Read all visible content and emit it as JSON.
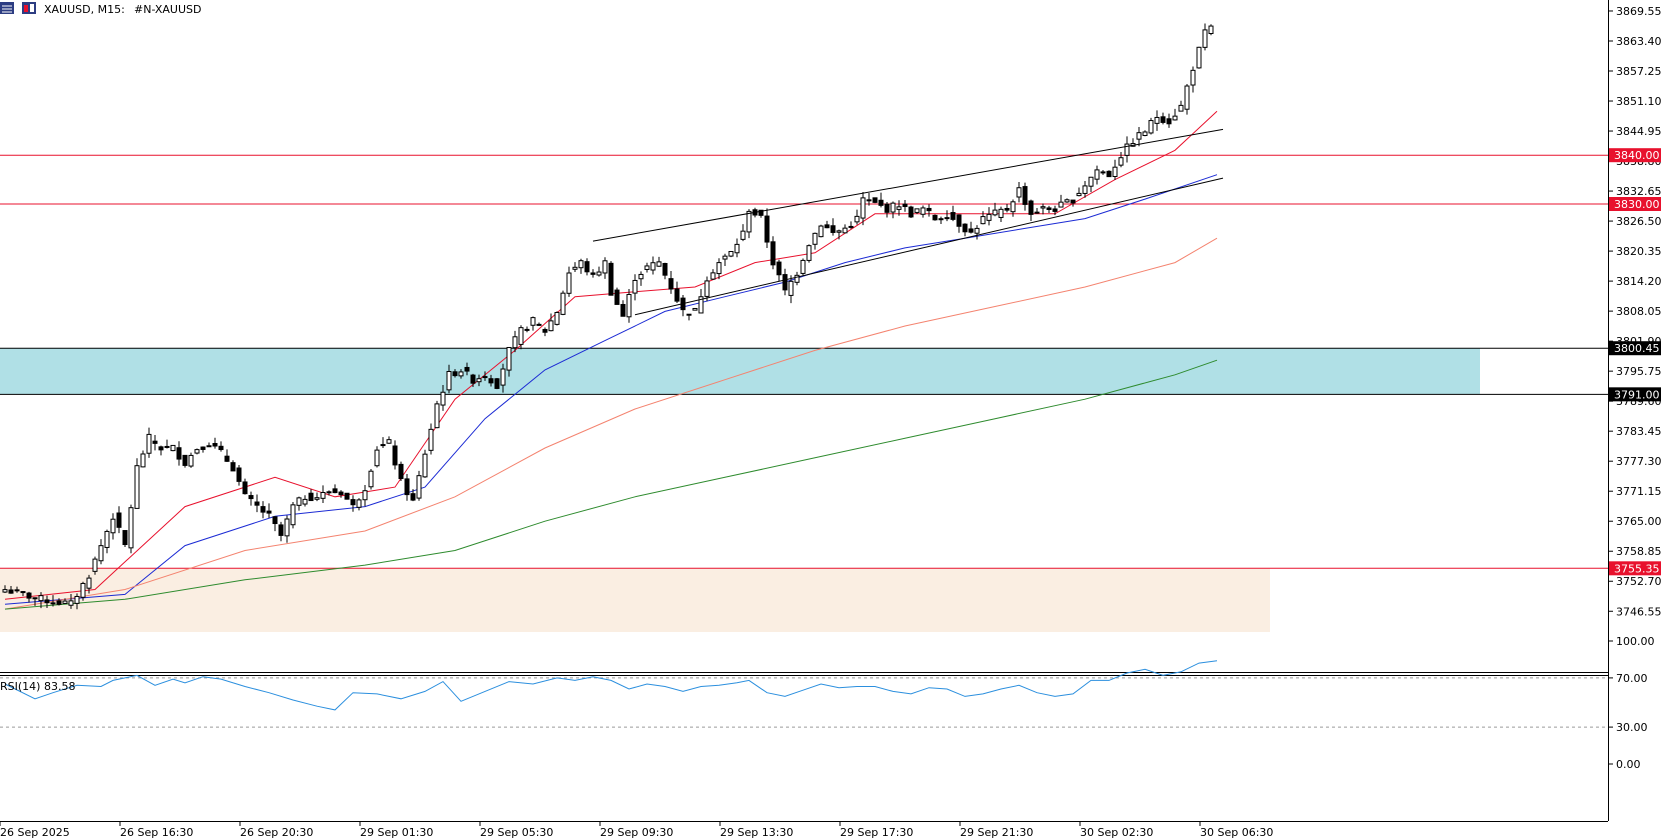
{
  "header": {
    "symbol_title": "XAUUSD, M15:",
    "symbol_desc": "#N-XAUUSD"
  },
  "indicator_label": "RSI(14) 83.58",
  "price_tags": [
    "3840.00",
    "3830.00",
    "3800.45",
    "3791.00",
    "3755.35"
  ],
  "colors": {
    "background": "#ffffff",
    "bull_candle": "#ffffff",
    "bear_candle": "#000000",
    "red_level": "#e8112d",
    "zone_cyan": "#b0e0e6",
    "zone_beige": "#faeee2",
    "ema_fast": "#e8112d",
    "ema_mid": "#1c2bd4",
    "ema_slow": "#f4836f",
    "ema_long": "#2e8b2e",
    "rsi_line": "#2b8fde"
  },
  "chart_data": [
    {
      "type": "candlestick",
      "title": "XAUUSD, M15: #N-XAUUSD",
      "ylim": [
        3742.3,
        3871.8
      ],
      "y_tick_labels": [
        "3863.40",
        "3857.25",
        "3851.10",
        "3844.95",
        "3838.80",
        "3832.65",
        "3826.50",
        "3820.35",
        "3814.20",
        "3808.05",
        "3801.90",
        "3795.75",
        "3789.60",
        "3783.45",
        "3777.30",
        "3771.15",
        "3765.00",
        "3758.85",
        "3752.70",
        "3746.55",
        "3869.55"
      ],
      "x_tick_labels": [
        "26 Sep 2025",
        "26 Sep 16:30",
        "26 Sep 20:30",
        "29 Sep 01:30",
        "29 Sep 05:30",
        "29 Sep 09:30",
        "29 Sep 13:30",
        "29 Sep 17:30",
        "29 Sep 21:30",
        "30 Sep 02:30",
        "30 Sep 06:30"
      ],
      "close_path": [
        [
          0,
          3751
        ],
        [
          6,
          3749
        ],
        [
          11,
          3748
        ],
        [
          14,
          3754
        ],
        [
          18,
          3766
        ],
        [
          20,
          3760
        ],
        [
          22,
          3776
        ],
        [
          24,
          3782
        ],
        [
          26,
          3780
        ],
        [
          28,
          3780
        ],
        [
          30,
          3777
        ],
        [
          32,
          3780
        ],
        [
          34,
          3781
        ],
        [
          36,
          3779
        ],
        [
          38,
          3776
        ],
        [
          40,
          3770
        ],
        [
          42,
          3768
        ],
        [
          44,
          3766
        ],
        [
          46,
          3762
        ],
        [
          48,
          3768
        ],
        [
          50,
          3770
        ],
        [
          52,
          3770
        ],
        [
          54,
          3771
        ],
        [
          56,
          3771
        ],
        [
          58,
          3768
        ],
        [
          60,
          3772
        ],
        [
          62,
          3780
        ],
        [
          64,
          3781
        ],
        [
          66,
          3773
        ],
        [
          68,
          3769
        ],
        [
          70,
          3779
        ],
        [
          72,
          3789
        ],
        [
          74,
          3795
        ],
        [
          76,
          3796
        ],
        [
          78,
          3794
        ],
        [
          80,
          3795
        ],
        [
          82,
          3793
        ],
        [
          84,
          3800
        ],
        [
          86,
          3804
        ],
        [
          88,
          3806
        ],
        [
          90,
          3804
        ],
        [
          92,
          3808
        ],
        [
          94,
          3816
        ],
        [
          96,
          3818
        ],
        [
          98,
          3815
        ],
        [
          100,
          3818
        ],
        [
          101,
          3812
        ],
        [
          103,
          3807
        ],
        [
          105,
          3815
        ],
        [
          107,
          3817
        ],
        [
          109,
          3818
        ],
        [
          111,
          3813
        ],
        [
          113,
          3808
        ],
        [
          115,
          3808
        ],
        [
          117,
          3815
        ],
        [
          119,
          3818
        ],
        [
          121,
          3820
        ],
        [
          123,
          3824
        ],
        [
          124,
          3829
        ],
        [
          126,
          3827
        ],
        [
          128,
          3818
        ],
        [
          130,
          3812
        ],
        [
          132,
          3816
        ],
        [
          134,
          3822
        ],
        [
          136,
          3826
        ],
        [
          138,
          3824
        ],
        [
          140,
          3825
        ],
        [
          142,
          3827
        ],
        [
          143,
          3831
        ],
        [
          145,
          3830
        ],
        [
          147,
          3829
        ],
        [
          149,
          3830
        ],
        [
          151,
          3828
        ],
        [
          153,
          3829
        ],
        [
          155,
          3827
        ],
        [
          157,
          3828
        ],
        [
          159,
          3826
        ],
        [
          161,
          3824
        ],
        [
          163,
          3827
        ],
        [
          165,
          3828
        ],
        [
          167,
          3829
        ],
        [
          169,
          3833
        ],
        [
          171,
          3828
        ],
        [
          173,
          3829
        ],
        [
          175,
          3829
        ],
        [
          178,
          3831
        ],
        [
          180,
          3834
        ],
        [
          182,
          3837
        ],
        [
          184,
          3836
        ],
        [
          186,
          3840
        ],
        [
          188,
          3843
        ],
        [
          190,
          3845
        ],
        [
          192,
          3848
        ],
        [
          194,
          3847
        ],
        [
          196,
          3850
        ],
        [
          198,
          3858
        ],
        [
          200,
          3865
        ],
        [
          201,
          3866
        ]
      ],
      "levels": [
        3840.0,
        3830.0,
        3755.35
      ],
      "zones": [
        {
          "from": 3791.0,
          "to": 3800.45
        },
        {
          "from": 3742.3,
          "to": 3755.35
        }
      ],
      "series": [
        {
          "points": [
            [
              0,
              3749
            ],
            [
              15,
              3751
            ],
            [
              30,
              3768
            ],
            [
              45,
              3774
            ],
            [
              55,
              3770
            ],
            [
              65,
              3772
            ],
            [
              75,
              3790
            ],
            [
              85,
              3800
            ],
            [
              95,
              3811
            ],
            [
              105,
              3812
            ],
            [
              115,
              3813
            ],
            [
              125,
              3818
            ],
            [
              135,
              3820
            ],
            [
              145,
              3828
            ],
            [
              155,
              3828
            ],
            [
              165,
              3828
            ],
            [
              175,
              3828
            ],
            [
              185,
              3835
            ],
            [
              195,
              3841
            ],
            [
              202,
              3849
            ]
          ]
        },
        {
          "points": [
            [
              0,
              3748
            ],
            [
              20,
              3750
            ],
            [
              30,
              3760
            ],
            [
              45,
              3766
            ],
            [
              60,
              3768
            ],
            [
              70,
              3772
            ],
            [
              80,
              3786
            ],
            [
              90,
              3796
            ],
            [
              100,
              3802
            ],
            [
              110,
              3808
            ],
            [
              120,
              3811
            ],
            [
              130,
              3814
            ],
            [
              140,
              3818
            ],
            [
              150,
              3821
            ],
            [
              160,
              3823
            ],
            [
              170,
              3825
            ],
            [
              180,
              3827
            ],
            [
              190,
              3831
            ],
            [
              202,
              3836
            ]
          ]
        },
        {
          "points": [
            [
              0,
              3747
            ],
            [
              20,
              3751
            ],
            [
              40,
              3759
            ],
            [
              60,
              3763
            ],
            [
              75,
              3770
            ],
            [
              90,
              3780
            ],
            [
              105,
              3788
            ],
            [
              120,
              3794
            ],
            [
              135,
              3800
            ],
            [
              150,
              3805
            ],
            [
              165,
              3809
            ],
            [
              180,
              3813
            ],
            [
              195,
              3818
            ],
            [
              202,
              3823
            ]
          ]
        },
        {
          "points": [
            [
              0,
              3747
            ],
            [
              20,
              3749
            ],
            [
              40,
              3753
            ],
            [
              60,
              3756
            ],
            [
              75,
              3759
            ],
            [
              90,
              3765
            ],
            [
              105,
              3770
            ],
            [
              120,
              3774
            ],
            [
              135,
              3778
            ],
            [
              150,
              3782
            ],
            [
              165,
              3786
            ],
            [
              180,
              3790
            ],
            [
              195,
              3795
            ],
            [
              202,
              3798
            ]
          ]
        }
      ],
      "trendlines": [
        {
          "from": [
            98,
            3822.4
          ],
          "to": [
            203,
            3845.3
          ]
        },
        {
          "from": [
            105,
            3807.3
          ],
          "to": [
            203,
            3835.3
          ]
        }
      ]
    },
    {
      "type": "line",
      "title": "RSI(14) 83.58",
      "ylim": [
        0,
        100
      ],
      "y_tick_labels": [
        "100.00",
        "70.00",
        "30.00",
        "0.00"
      ],
      "levels": [
        70,
        30
      ],
      "values_path": [
        [
          0,
          65
        ],
        [
          5,
          53
        ],
        [
          8,
          58
        ],
        [
          12,
          64
        ],
        [
          16,
          63
        ],
        [
          18,
          68
        ],
        [
          22,
          72
        ],
        [
          25,
          64
        ],
        [
          28,
          69
        ],
        [
          30,
          66
        ],
        [
          33,
          71
        ],
        [
          36,
          69
        ],
        [
          40,
          63
        ],
        [
          44,
          58
        ],
        [
          48,
          52
        ],
        [
          52,
          47
        ],
        [
          55,
          44
        ],
        [
          58,
          58
        ],
        [
          62,
          57
        ],
        [
          66,
          53
        ],
        [
          70,
          59
        ],
        [
          73,
          67
        ],
        [
          76,
          51
        ],
        [
          80,
          59
        ],
        [
          84,
          67
        ],
        [
          88,
          65
        ],
        [
          92,
          70
        ],
        [
          95,
          68
        ],
        [
          98,
          71
        ],
        [
          101,
          68
        ],
        [
          104,
          61
        ],
        [
          107,
          65
        ],
        [
          110,
          63
        ],
        [
          113,
          59
        ],
        [
          116,
          63
        ],
        [
          119,
          64
        ],
        [
          122,
          66
        ],
        [
          124,
          68
        ],
        [
          127,
          58
        ],
        [
          130,
          55
        ],
        [
          133,
          60
        ],
        [
          136,
          65
        ],
        [
          139,
          62
        ],
        [
          142,
          63
        ],
        [
          145,
          63
        ],
        [
          148,
          59
        ],
        [
          151,
          57
        ],
        [
          154,
          62
        ],
        [
          157,
          61
        ],
        [
          160,
          55
        ],
        [
          163,
          57
        ],
        [
          166,
          61
        ],
        [
          169,
          64
        ],
        [
          172,
          58
        ],
        [
          175,
          55
        ],
        [
          178,
          57
        ],
        [
          181,
          68
        ],
        [
          184,
          68
        ],
        [
          187,
          74
        ],
        [
          190,
          77
        ],
        [
          193,
          72
        ],
        [
          196,
          75
        ],
        [
          199,
          82
        ],
        [
          202,
          84
        ]
      ]
    }
  ]
}
